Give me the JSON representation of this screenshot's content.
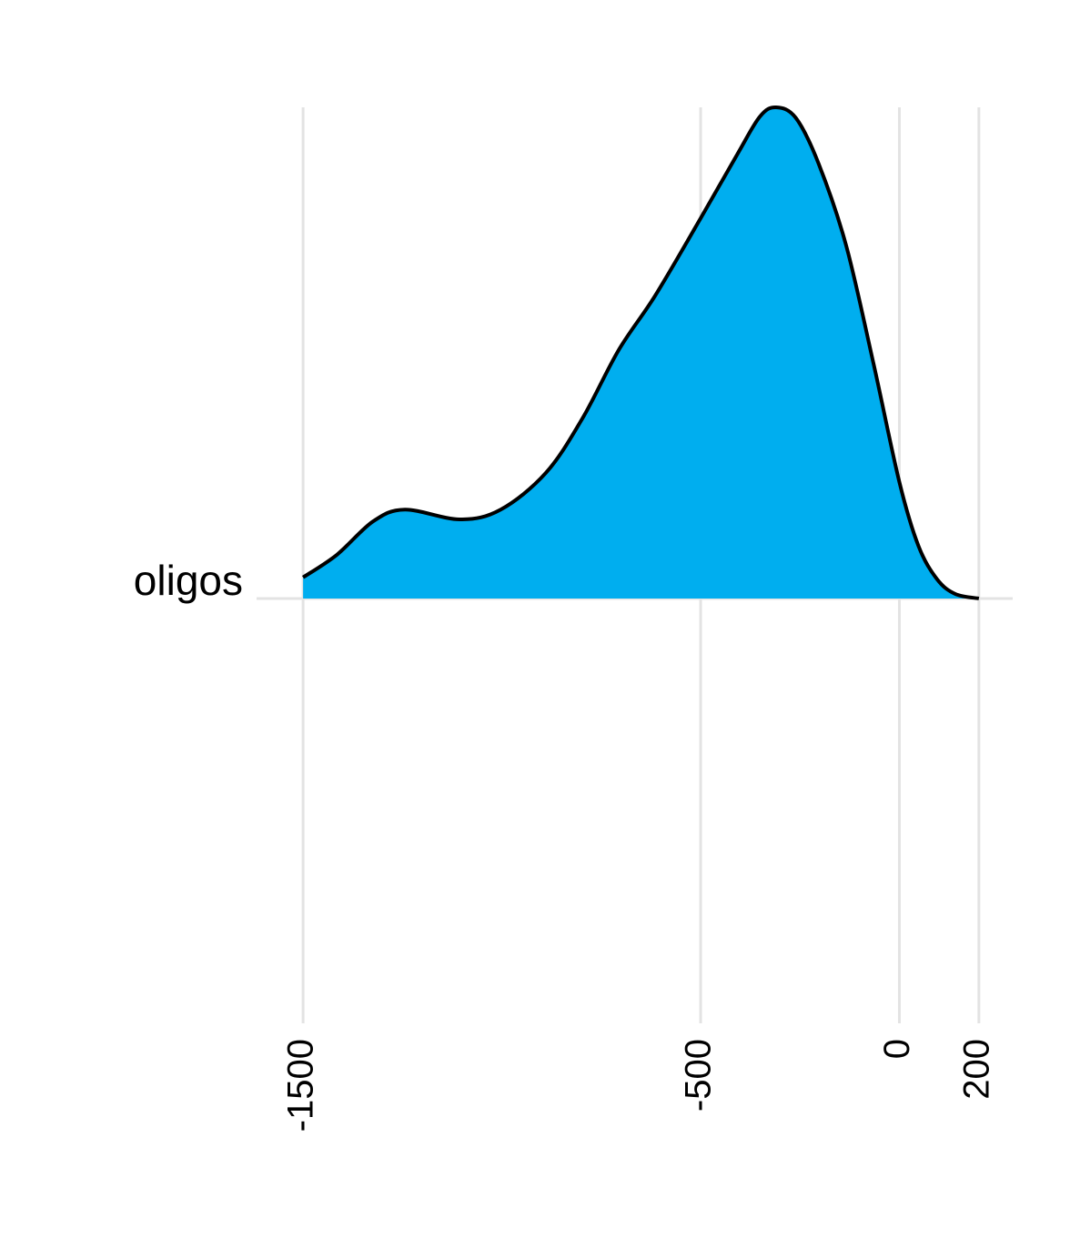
{
  "chart_data": {
    "type": "density",
    "categories": [
      "oligos"
    ],
    "x": [
      -1500,
      -1415,
      -1324,
      -1244,
      -1106,
      -1003,
      -889,
      -797,
      -706,
      -614,
      -500,
      -408,
      -351,
      -310,
      -260,
      -203,
      -134,
      -65,
      0,
      48,
      95,
      141,
      200
    ],
    "values": [
      0.043,
      0.089,
      0.157,
      0.181,
      0.161,
      0.181,
      0.256,
      0.367,
      0.506,
      0.617,
      0.774,
      0.904,
      0.981,
      1.0,
      0.978,
      0.885,
      0.719,
      0.478,
      0.237,
      0.107,
      0.039,
      0.009,
      0
    ],
    "color": "#00AEEF",
    "xlim": [
      -1617,
      285
    ],
    "xticks": [
      -1500,
      -500,
      0,
      200
    ],
    "ylim": [
      -0.865,
      1
    ],
    "grid": true
  }
}
